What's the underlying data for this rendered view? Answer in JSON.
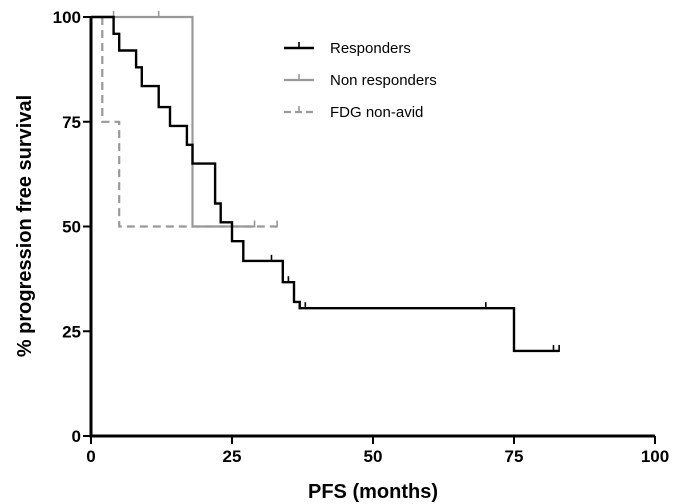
{
  "chart_data": {
    "type": "line",
    "subtype": "kaplan-meier-step",
    "xlabel": "PFS (months)",
    "ylabel": "% progression free survival",
    "xlim": [
      0,
      100
    ],
    "ylim": [
      0,
      100
    ],
    "x_ticks": [
      0,
      25,
      50,
      75,
      100
    ],
    "y_ticks": [
      0,
      25,
      50,
      75,
      100
    ],
    "grid": false,
    "legend_position": "top-right",
    "series": [
      {
        "name": "Responders",
        "color": "#000000",
        "line_style": "solid",
        "steps": [
          [
            0,
            100
          ],
          [
            4,
            100
          ],
          [
            4,
            96
          ],
          [
            5,
            96
          ],
          [
            5,
            92
          ],
          [
            8,
            92
          ],
          [
            8,
            88
          ],
          [
            9,
            88
          ],
          [
            9,
            83.5
          ],
          [
            12,
            83.5
          ],
          [
            12,
            78.5
          ],
          [
            14,
            78.5
          ],
          [
            14,
            74
          ],
          [
            17,
            74
          ],
          [
            17,
            69.5
          ],
          [
            18,
            69.5
          ],
          [
            18,
            65
          ],
          [
            22,
            65
          ],
          [
            22,
            55.5
          ],
          [
            23,
            55.5
          ],
          [
            23,
            51
          ],
          [
            25,
            51
          ],
          [
            25,
            46.5
          ],
          [
            27,
            46.5
          ],
          [
            27,
            41.8
          ],
          [
            34,
            41.8
          ],
          [
            34,
            36.7
          ],
          [
            36,
            36.7
          ],
          [
            36,
            32
          ],
          [
            37,
            32
          ],
          [
            37,
            30.5
          ],
          [
            75,
            30.5
          ],
          [
            75,
            20.3
          ],
          [
            83,
            20.3
          ]
        ],
        "censored": [
          [
            32,
            41.8
          ],
          [
            35,
            36.7
          ],
          [
            38,
            30.5
          ],
          [
            70,
            30.5
          ],
          [
            82,
            20.3
          ],
          [
            83,
            20.3
          ]
        ]
      },
      {
        "name": "Non responders",
        "color": "#999999",
        "line_style": "solid",
        "steps": [
          [
            0,
            100
          ],
          [
            18,
            100
          ],
          [
            18,
            50
          ],
          [
            29,
            50
          ]
        ],
        "censored": [
          [
            4,
            100
          ],
          [
            12,
            100
          ],
          [
            29,
            50
          ]
        ]
      },
      {
        "name": "FDG non-avid",
        "color": "#999999",
        "line_style": "dashed",
        "steps": [
          [
            2,
            100
          ],
          [
            2,
            75
          ],
          [
            5,
            75
          ],
          [
            5,
            50
          ],
          [
            33,
            50
          ]
        ],
        "censored": [
          [
            33,
            50
          ]
        ]
      }
    ]
  }
}
